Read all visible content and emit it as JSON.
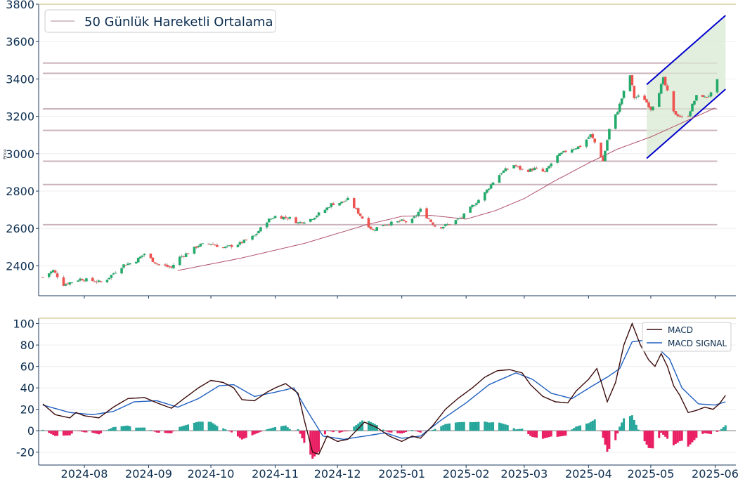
{
  "colors": {
    "up": "#26a69a",
    "up_candle": "#22ab6a",
    "down": "#ef5350",
    "ma": "#b0506a",
    "macd_line": "#3b0a0a",
    "signal_line": "#1f5fbf",
    "hist_pos": "#26a69a",
    "hist_neg": "#e91e63",
    "channel_line": "#0000cc",
    "channel_fill": "#d9ead3",
    "sr_line": "#cbb3bd",
    "axis": "#1b3a5c",
    "text": "#0b2d4f"
  },
  "chart_data": [
    {
      "type": "candlestick",
      "panel": "price",
      "ylabel": "Price",
      "ylim": [
        2240,
        3800
      ],
      "yticks": [
        2400,
        2600,
        2800,
        3000,
        3200,
        3400,
        3600,
        3800
      ],
      "x_range": [
        "2024-07-10",
        "2025-06-11"
      ],
      "legend": {
        "position": "top-left",
        "entries": [
          "50 Günlük Hareketli Ortalama"
        ]
      },
      "grid": "horizontal",
      "horizontal_levels": [
        3485,
        3430,
        3240,
        3125,
        2960,
        2835,
        2620
      ],
      "levels_x_range": [
        "2024-07-12",
        "2025-06-02"
      ],
      "channel": {
        "upper": [
          [
            "2025-04-29",
            3370
          ],
          [
            "2025-06-06",
            3740
          ]
        ],
        "lower": [
          [
            "2025-04-29",
            2975
          ],
          [
            "2025-06-06",
            3345
          ]
        ]
      },
      "price_anchors": [
        [
          "2024-07-12",
          2340
        ],
        [
          "2024-07-17",
          2375
        ],
        [
          "2024-07-22",
          2300
        ],
        [
          "2024-07-30",
          2330
        ],
        [
          "2024-08-05",
          2320
        ],
        [
          "2024-08-10",
          2310
        ],
        [
          "2024-08-15",
          2360
        ],
        [
          "2024-08-20",
          2405
        ],
        [
          "2024-08-25",
          2420
        ],
        [
          "2024-08-30",
          2465
        ],
        [
          "2024-09-05",
          2410
        ],
        [
          "2024-09-12",
          2390
        ],
        [
          "2024-09-15",
          2440
        ],
        [
          "2024-09-20",
          2470
        ],
        [
          "2024-09-25",
          2510
        ],
        [
          "2024-10-01",
          2520
        ],
        [
          "2024-10-07",
          2495
        ],
        [
          "2024-10-15",
          2520
        ],
        [
          "2024-10-22",
          2560
        ],
        [
          "2024-10-28",
          2640
        ],
        [
          "2024-11-01",
          2665
        ],
        [
          "2024-11-08",
          2655
        ],
        [
          "2024-11-12",
          2630
        ],
        [
          "2024-11-18",
          2650
        ],
        [
          "2024-11-25",
          2700
        ],
        [
          "2024-11-28",
          2730
        ],
        [
          "2024-12-03",
          2740
        ],
        [
          "2024-12-06",
          2755
        ],
        [
          "2024-12-10",
          2700
        ],
        [
          "2024-12-14",
          2640
        ],
        [
          "2024-12-18",
          2590
        ],
        [
          "2024-12-22",
          2620
        ],
        [
          "2024-12-28",
          2630
        ],
        [
          "2025-01-01",
          2640
        ],
        [
          "2025-01-05",
          2630
        ],
        [
          "2025-01-10",
          2700
        ],
        [
          "2025-01-14",
          2650
        ],
        [
          "2025-01-18",
          2600
        ],
        [
          "2025-01-23",
          2620
        ],
        [
          "2025-01-30",
          2660
        ],
        [
          "2025-02-04",
          2720
        ],
        [
          "2025-02-09",
          2775
        ],
        [
          "2025-02-14",
          2850
        ],
        [
          "2025-02-18",
          2900
        ],
        [
          "2025-02-24",
          2940
        ],
        [
          "2025-03-01",
          2905
        ],
        [
          "2025-03-06",
          2920
        ],
        [
          "2025-03-11",
          2900
        ],
        [
          "2025-03-16",
          2980
        ],
        [
          "2025-03-22",
          3020
        ],
        [
          "2025-03-28",
          3040
        ],
        [
          "2025-04-02",
          3100
        ],
        [
          "2025-04-05",
          3040
        ],
        [
          "2025-04-08",
          2960
        ],
        [
          "2025-04-11",
          3130
        ],
        [
          "2025-04-15",
          3230
        ],
        [
          "2025-04-18",
          3330
        ],
        [
          "2025-04-21",
          3420
        ],
        [
          "2025-04-23",
          3300
        ],
        [
          "2025-04-27",
          3310
        ],
        [
          "2025-05-01",
          3240
        ],
        [
          "2025-05-04",
          3300
        ],
        [
          "2025-05-07",
          3400
        ],
        [
          "2025-05-09",
          3330
        ],
        [
          "2025-05-12",
          3220
        ],
        [
          "2025-05-15",
          3200
        ],
        [
          "2025-05-18",
          3180
        ],
        [
          "2025-05-21",
          3260
        ],
        [
          "2025-05-24",
          3330
        ],
        [
          "2025-05-27",
          3300
        ],
        [
          "2025-05-30",
          3320
        ],
        [
          "2025-06-02",
          3390
        ]
      ],
      "ma_anchors": [
        [
          "2024-09-15",
          2375
        ],
        [
          "2024-10-15",
          2440
        ],
        [
          "2024-11-15",
          2520
        ],
        [
          "2024-12-15",
          2620
        ],
        [
          "2025-01-01",
          2665
        ],
        [
          "2025-01-15",
          2670
        ],
        [
          "2025-02-01",
          2650
        ],
        [
          "2025-02-15",
          2695
        ],
        [
          "2025-03-01",
          2760
        ],
        [
          "2025-03-15",
          2850
        ],
        [
          "2025-04-01",
          2950
        ],
        [
          "2025-04-15",
          3025
        ],
        [
          "2025-05-01",
          3090
        ],
        [
          "2025-05-15",
          3160
        ],
        [
          "2025-06-01",
          3245
        ]
      ]
    },
    {
      "type": "line+bar",
      "panel": "macd",
      "ylim": [
        -32,
        105
      ],
      "yticks": [
        -20,
        0,
        20,
        40,
        60,
        80,
        100
      ],
      "x_range": [
        "2024-07-10",
        "2025-06-11"
      ],
      "xticks": [
        "2024-08",
        "2024-09",
        "2024-10",
        "2024-11",
        "2024-12",
        "2025-01",
        "2025-02",
        "2025-03",
        "2025-04",
        "2025-05",
        "2025-06"
      ],
      "legend": {
        "position": "top-right",
        "entries": [
          "MACD",
          "MACD SIGNAL"
        ]
      },
      "macd_anchors": [
        [
          "2024-07-12",
          25
        ],
        [
          "2024-07-18",
          15
        ],
        [
          "2024-07-25",
          12
        ],
        [
          "2024-07-28",
          17
        ],
        [
          "2024-08-01",
          14
        ],
        [
          "2024-08-08",
          12
        ],
        [
          "2024-08-15",
          22
        ],
        [
          "2024-08-22",
          30
        ],
        [
          "2024-08-30",
          31
        ],
        [
          "2024-09-05",
          26
        ],
        [
          "2024-09-12",
          21
        ],
        [
          "2024-09-18",
          30
        ],
        [
          "2024-09-25",
          40
        ],
        [
          "2024-10-01",
          47
        ],
        [
          "2024-10-07",
          45
        ],
        [
          "2024-10-12",
          40
        ],
        [
          "2024-10-16",
          29
        ],
        [
          "2024-10-22",
          28
        ],
        [
          "2024-10-28",
          36
        ],
        [
          "2024-11-01",
          40
        ],
        [
          "2024-11-06",
          44
        ],
        [
          "2024-11-12",
          35
        ],
        [
          "2024-11-15",
          10
        ],
        [
          "2024-11-19",
          -20
        ],
        [
          "2024-11-22",
          -22
        ],
        [
          "2024-11-26",
          -5
        ],
        [
          "2024-12-01",
          -10
        ],
        [
          "2024-12-06",
          -8
        ],
        [
          "2024-12-14",
          8
        ],
        [
          "2024-12-20",
          3
        ],
        [
          "2024-12-26",
          -5
        ],
        [
          "2025-01-01",
          -10
        ],
        [
          "2025-01-06",
          -5
        ],
        [
          "2025-01-10",
          -7
        ],
        [
          "2025-01-16",
          5
        ],
        [
          "2025-01-22",
          20
        ],
        [
          "2025-01-28",
          30
        ],
        [
          "2025-02-04",
          40
        ],
        [
          "2025-02-10",
          50
        ],
        [
          "2025-02-16",
          56
        ],
        [
          "2025-02-22",
          57
        ],
        [
          "2025-02-28",
          54
        ],
        [
          "2025-03-04",
          43
        ],
        [
          "2025-03-10",
          32
        ],
        [
          "2025-03-16",
          27
        ],
        [
          "2025-03-22",
          26
        ],
        [
          "2025-03-26",
          37
        ],
        [
          "2025-04-01",
          48
        ],
        [
          "2025-04-05",
          58
        ],
        [
          "2025-04-08",
          40
        ],
        [
          "2025-04-10",
          27
        ],
        [
          "2025-04-14",
          45
        ],
        [
          "2025-04-18",
          80
        ],
        [
          "2025-04-22",
          100
        ],
        [
          "2025-04-26",
          80
        ],
        [
          "2025-04-30",
          66
        ],
        [
          "2025-05-03",
          60
        ],
        [
          "2025-05-06",
          72
        ],
        [
          "2025-05-09",
          60
        ],
        [
          "2025-05-12",
          42
        ],
        [
          "2025-05-15",
          33
        ],
        [
          "2025-05-19",
          17
        ],
        [
          "2025-05-23",
          19
        ],
        [
          "2025-05-27",
          22
        ],
        [
          "2025-05-31",
          20
        ],
        [
          "2025-06-03",
          25
        ],
        [
          "2025-06-06",
          33
        ]
      ],
      "signal_anchors": [
        [
          "2024-07-12",
          24
        ],
        [
          "2024-07-25",
          17
        ],
        [
          "2024-08-05",
          15
        ],
        [
          "2024-08-15",
          18
        ],
        [
          "2024-08-25",
          27
        ],
        [
          "2024-09-05",
          28
        ],
        [
          "2024-09-15",
          22
        ],
        [
          "2024-09-25",
          30
        ],
        [
          "2024-10-05",
          42
        ],
        [
          "2024-10-12",
          43
        ],
        [
          "2024-10-22",
          32
        ],
        [
          "2024-11-01",
          36
        ],
        [
          "2024-11-10",
          40
        ],
        [
          "2024-11-16",
          20
        ],
        [
          "2024-11-24",
          -5
        ],
        [
          "2024-12-04",
          -8
        ],
        [
          "2024-12-14",
          -5
        ],
        [
          "2024-12-24",
          -2
        ],
        [
          "2025-01-01",
          -7
        ],
        [
          "2025-01-10",
          -5
        ],
        [
          "2025-01-20",
          10
        ],
        [
          "2025-02-01",
          26
        ],
        [
          "2025-02-12",
          43
        ],
        [
          "2025-02-25",
          54
        ],
        [
          "2025-03-05",
          48
        ],
        [
          "2025-03-14",
          35
        ],
        [
          "2025-03-24",
          30
        ],
        [
          "2025-04-03",
          42
        ],
        [
          "2025-04-10",
          50
        ],
        [
          "2025-04-16",
          58
        ],
        [
          "2025-04-22",
          83
        ],
        [
          "2025-04-30",
          85
        ],
        [
          "2025-05-10",
          67
        ],
        [
          "2025-05-16",
          40
        ],
        [
          "2025-05-24",
          25
        ],
        [
          "2025-06-01",
          24
        ],
        [
          "2025-06-06",
          27
        ]
      ]
    }
  ]
}
